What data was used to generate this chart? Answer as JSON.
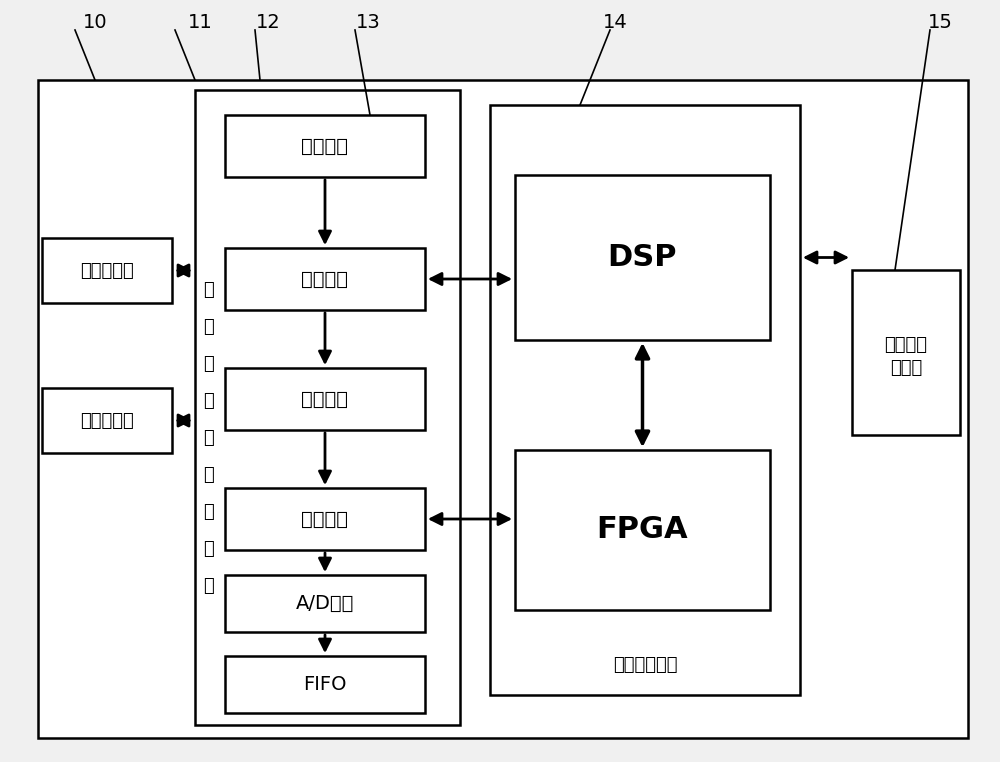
{
  "bg_color": "#f0f0f0",
  "box_fc": "#ffffff",
  "box_ec": "#000000",
  "labels": {
    "xinlv": "心率传感器",
    "xueya": "血压传感器",
    "qianzhi": "前置放大",
    "guozai": "过载控制",
    "chengkong": "程控增益",
    "kanghun": "抗混滤波",
    "ad": "A/D转换",
    "fifo": "FIFO",
    "dsp": "DSP",
    "fpga": "FPGA",
    "wuxian_l1": "无线信号",
    "wuxian_l2": "发射器",
    "xinhao_chars": [
      "信",
      "号",
      "调",
      "理",
      "与",
      "采",
      "集",
      "单",
      "元"
    ],
    "hexin": "核心控制单元",
    "n10": "10",
    "n11": "11",
    "n12": "12",
    "n13": "13",
    "n14": "14",
    "n15": "15"
  },
  "figsize": [
    10.0,
    7.62
  ],
  "dpi": 100
}
